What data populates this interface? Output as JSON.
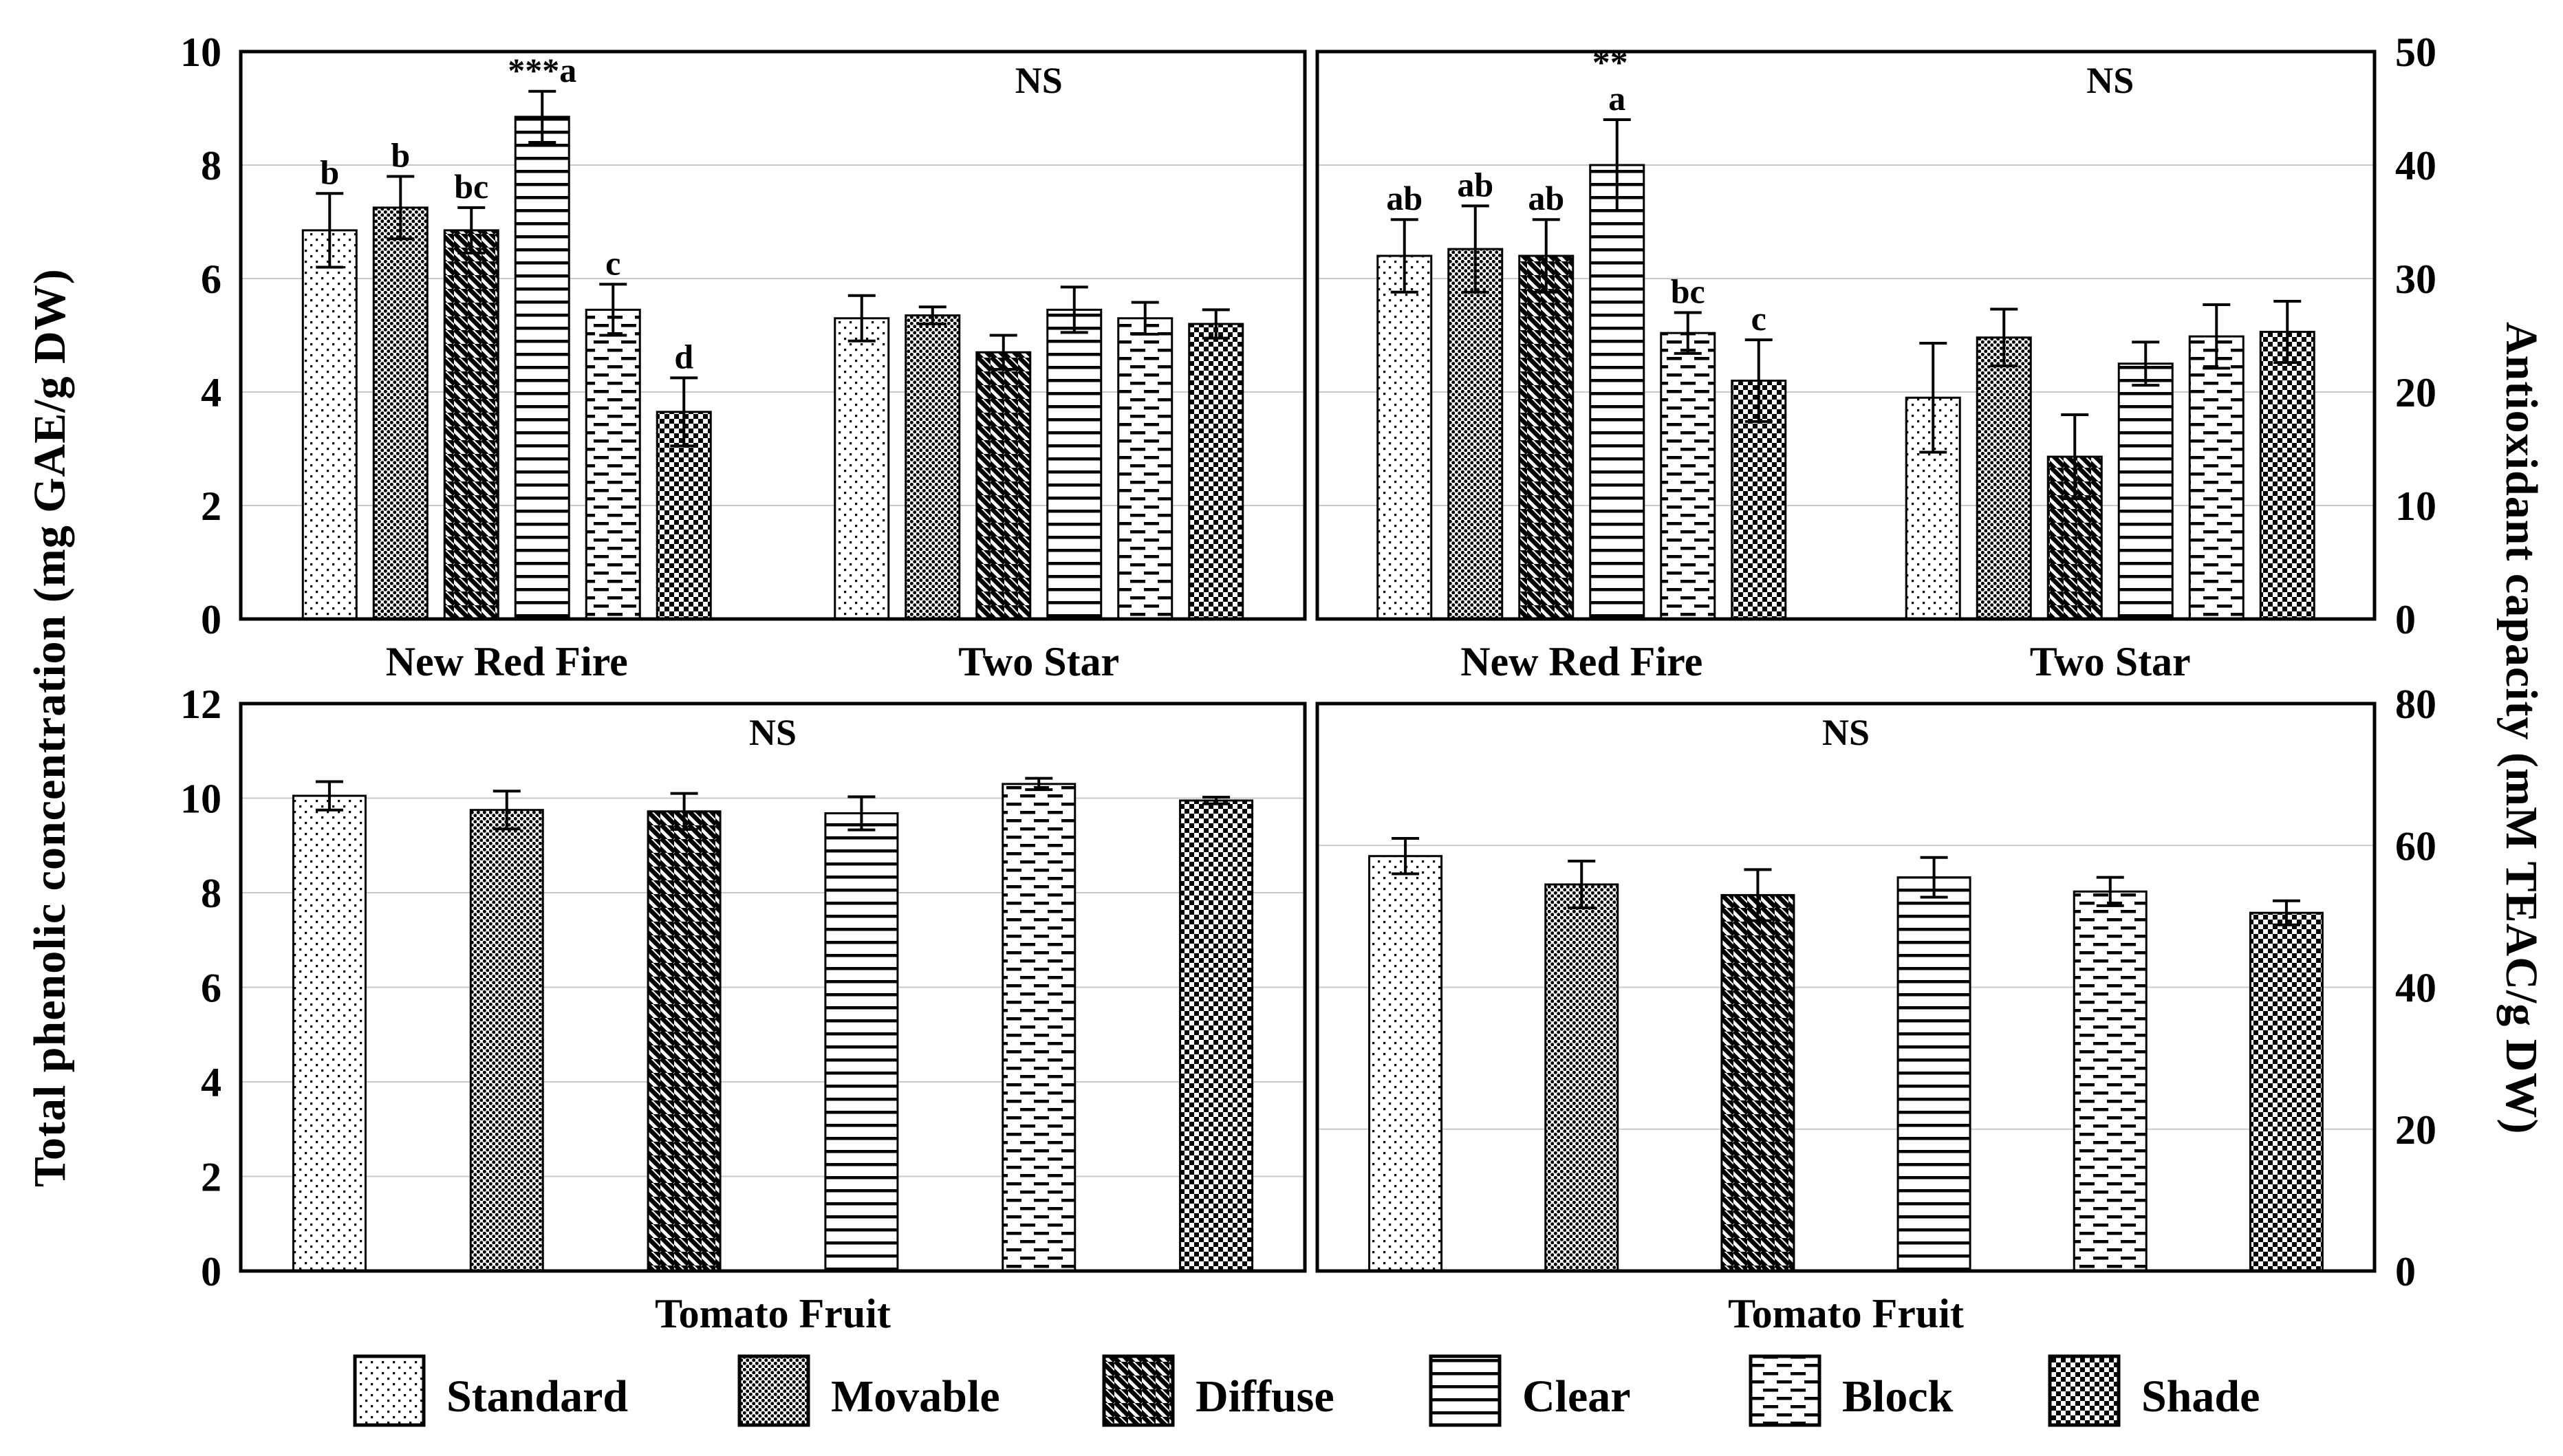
{
  "figure": {
    "left_axis_label": "Total phenolic concentration (mg GAE/g DW)",
    "right_axis_label": "Antioxidant capacity (mM TEAC/g DW)"
  },
  "colors": {
    "background": "#ffffff",
    "bar_fill": "#ffffff",
    "bar_stroke": "#000000",
    "grid": "#c9c9c9",
    "text": "#000000"
  },
  "legend": {
    "items": [
      {
        "label": "Standard",
        "pattern": "standard"
      },
      {
        "label": "Movable",
        "pattern": "movable"
      },
      {
        "label": "Diffuse",
        "pattern": "diffuse"
      },
      {
        "label": "Clear",
        "pattern": "clear"
      },
      {
        "label": "Block",
        "pattern": "block"
      },
      {
        "label": "Shade",
        "pattern": "shade"
      }
    ]
  },
  "chart_data": [
    {
      "id": "phenolic-lettuce",
      "type": "bar",
      "position": "top-left",
      "axis_side": "left",
      "ylabel": "Total phenolic concentration (mg GAE/g DW)",
      "ylim": [
        0,
        10
      ],
      "yticks": [
        0,
        2,
        4,
        6,
        8,
        10
      ],
      "grid": true,
      "groups": [
        {
          "label": "New Red Fire",
          "annotation": "",
          "bars": [
            {
              "series": "Standard",
              "value": 6.85,
              "error": 0.65,
              "letter": "b",
              "stars": "",
              "stars_layout": ""
            },
            {
              "series": "Movable",
              "value": 7.25,
              "error": 0.55,
              "letter": "b",
              "stars": "",
              "stars_layout": ""
            },
            {
              "series": "Diffuse",
              "value": 6.85,
              "error": 0.4,
              "letter": "bc",
              "stars": "",
              "stars_layout": ""
            },
            {
              "series": "Clear",
              "value": 8.85,
              "error": 0.45,
              "letter": "a",
              "stars": "***",
              "stars_layout": "inline"
            },
            {
              "series": "Block",
              "value": 5.45,
              "error": 0.45,
              "letter": "c",
              "stars": "",
              "stars_layout": ""
            },
            {
              "series": "Shade",
              "value": 3.65,
              "error": 0.6,
              "letter": "d",
              "stars": "",
              "stars_layout": ""
            }
          ]
        },
        {
          "label": "Two Star",
          "annotation": "NS",
          "bars": [
            {
              "series": "Standard",
              "value": 5.3,
              "error": 0.4,
              "letter": "",
              "stars": "",
              "stars_layout": ""
            },
            {
              "series": "Movable",
              "value": 5.35,
              "error": 0.15,
              "letter": "",
              "stars": "",
              "stars_layout": ""
            },
            {
              "series": "Diffuse",
              "value": 4.7,
              "error": 0.3,
              "letter": "",
              "stars": "",
              "stars_layout": ""
            },
            {
              "series": "Clear",
              "value": 5.45,
              "error": 0.4,
              "letter": "",
              "stars": "",
              "stars_layout": ""
            },
            {
              "series": "Block",
              "value": 5.3,
              "error": 0.28,
              "letter": "",
              "stars": "",
              "stars_layout": ""
            },
            {
              "series": "Shade",
              "value": 5.2,
              "error": 0.25,
              "letter": "",
              "stars": "",
              "stars_layout": ""
            }
          ]
        }
      ]
    },
    {
      "id": "antioxidant-lettuce",
      "type": "bar",
      "position": "top-right",
      "axis_side": "right",
      "ylabel": "Antioxidant capacity (mM TEAC/g DW)",
      "ylim": [
        0,
        50
      ],
      "yticks": [
        0,
        10,
        20,
        30,
        40,
        50
      ],
      "grid": true,
      "groups": [
        {
          "label": "New Red Fire",
          "annotation": "",
          "bars": [
            {
              "series": "Standard",
              "value": 32.0,
              "error": 3.2,
              "letter": "ab",
              "stars": "",
              "stars_layout": ""
            },
            {
              "series": "Movable",
              "value": 32.6,
              "error": 3.8,
              "letter": "ab",
              "stars": "",
              "stars_layout": ""
            },
            {
              "series": "Diffuse",
              "value": 32.0,
              "error": 3.2,
              "letter": "ab",
              "stars": "",
              "stars_layout": ""
            },
            {
              "series": "Clear",
              "value": 40.0,
              "error": 4.0,
              "letter": "a",
              "stars": "**",
              "stars_layout": "stacked"
            },
            {
              "series": "Block",
              "value": 25.2,
              "error": 1.8,
              "letter": "bc",
              "stars": "",
              "stars_layout": ""
            },
            {
              "series": "Shade",
              "value": 21.0,
              "error": 3.6,
              "letter": "c",
              "stars": "",
              "stars_layout": ""
            }
          ]
        },
        {
          "label": "Two Star",
          "annotation": "NS",
          "bars": [
            {
              "series": "Standard",
              "value": 19.5,
              "error": 4.8,
              "letter": "",
              "stars": "",
              "stars_layout": ""
            },
            {
              "series": "Movable",
              "value": 24.8,
              "error": 2.5,
              "letter": "",
              "stars": "",
              "stars_layout": ""
            },
            {
              "series": "Diffuse",
              "value": 14.3,
              "error": 3.7,
              "letter": "",
              "stars": "",
              "stars_layout": ""
            },
            {
              "series": "Clear",
              "value": 22.5,
              "error": 1.9,
              "letter": "",
              "stars": "",
              "stars_layout": ""
            },
            {
              "series": "Block",
              "value": 24.9,
              "error": 2.8,
              "letter": "",
              "stars": "",
              "stars_layout": ""
            },
            {
              "series": "Shade",
              "value": 25.3,
              "error": 2.7,
              "letter": "",
              "stars": "",
              "stars_layout": ""
            }
          ]
        }
      ]
    },
    {
      "id": "phenolic-tomato",
      "type": "bar",
      "position": "bottom-left",
      "axis_side": "left",
      "ylabel": "Total phenolic concentration (mg GAE/g DW)",
      "ylim": [
        0,
        12
      ],
      "yticks": [
        0,
        2,
        4,
        6,
        8,
        10,
        12
      ],
      "grid": true,
      "groups": [
        {
          "label": "Tomato Fruit",
          "annotation": "NS",
          "bars": [
            {
              "series": "Standard",
              "value": 10.05,
              "error": 0.3,
              "letter": "",
              "stars": "",
              "stars_layout": ""
            },
            {
              "series": "Movable",
              "value": 9.75,
              "error": 0.4,
              "letter": "",
              "stars": "",
              "stars_layout": ""
            },
            {
              "series": "Diffuse",
              "value": 9.72,
              "error": 0.38,
              "letter": "",
              "stars": "",
              "stars_layout": ""
            },
            {
              "series": "Clear",
              "value": 9.68,
              "error": 0.35,
              "letter": "",
              "stars": "",
              "stars_layout": ""
            },
            {
              "series": "Block",
              "value": 10.3,
              "error": 0.12,
              "letter": "",
              "stars": "",
              "stars_layout": ""
            },
            {
              "series": "Shade",
              "value": 9.95,
              "error": 0.07,
              "letter": "",
              "stars": "",
              "stars_layout": ""
            }
          ]
        }
      ]
    },
    {
      "id": "antioxidant-tomato",
      "type": "bar",
      "position": "bottom-right",
      "axis_side": "right",
      "ylabel": "Antioxidant capacity (mM TEAC/g DW)",
      "ylim": [
        0,
        80
      ],
      "yticks": [
        0,
        20,
        40,
        60,
        80
      ],
      "grid": true,
      "groups": [
        {
          "label": "Tomato Fruit",
          "annotation": "NS",
          "bars": [
            {
              "series": "Standard",
              "value": 58.5,
              "error": 2.5,
              "letter": "",
              "stars": "",
              "stars_layout": ""
            },
            {
              "series": "Movable",
              "value": 54.5,
              "error": 3.3,
              "letter": "",
              "stars": "",
              "stars_layout": ""
            },
            {
              "series": "Diffuse",
              "value": 53.0,
              "error": 3.6,
              "letter": "",
              "stars": "",
              "stars_layout": ""
            },
            {
              "series": "Clear",
              "value": 55.5,
              "error": 2.8,
              "letter": "",
              "stars": "",
              "stars_layout": ""
            },
            {
              "series": "Block",
              "value": 53.5,
              "error": 2.0,
              "letter": "",
              "stars": "",
              "stars_layout": ""
            },
            {
              "series": "Shade",
              "value": 50.5,
              "error": 1.7,
              "letter": "",
              "stars": "",
              "stars_layout": ""
            }
          ]
        }
      ]
    }
  ]
}
